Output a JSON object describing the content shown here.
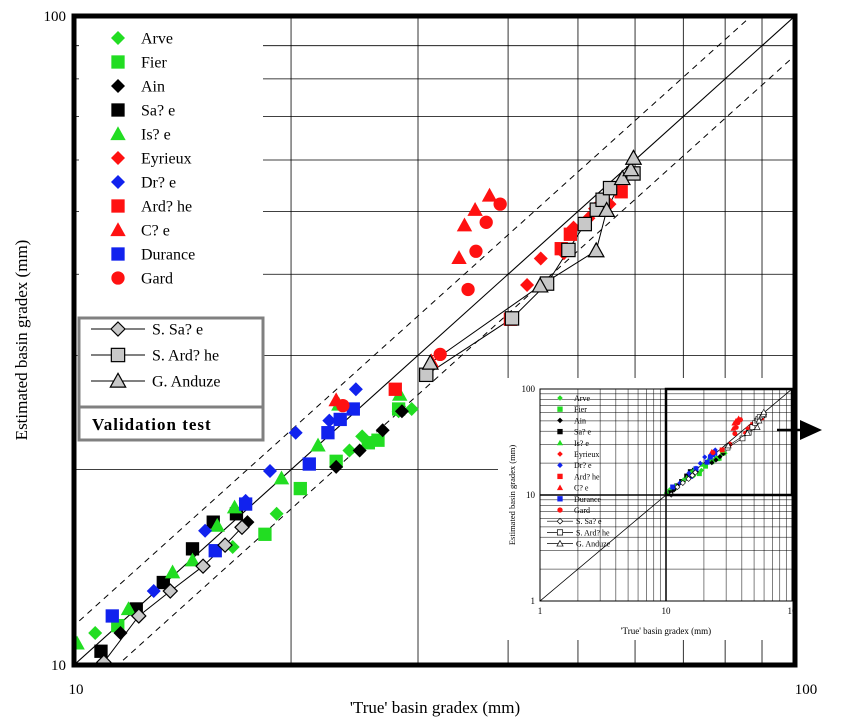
{
  "chart_data": {
    "type": "scatter",
    "xlabel": "'True' basin gradex (mm)",
    "ylabel": "Estimated basin gradex (mm)",
    "xscale": "log",
    "yscale": "log",
    "xlim": [
      10,
      100
    ],
    "ylim": [
      10,
      100
    ],
    "x_ticks": [
      "10",
      "100"
    ],
    "y_ticks": [
      "10",
      "100"
    ],
    "grid": "major and minor",
    "reference_lines": [
      "1:1 line",
      "upper dashed bound",
      "lower dashed bound"
    ],
    "legend_title": "Validation test",
    "legend_position": "top-left",
    "series": [
      {
        "name": "Arve",
        "marker": "diamond",
        "color": "#22dd22",
        "fill": true,
        "points": [
          [
            10.7,
            11.2
          ],
          [
            16.6,
            15.2
          ],
          [
            19.1,
            17.1
          ],
          [
            24.1,
            21.4
          ],
          [
            25.1,
            22.5
          ],
          [
            28.2,
            24.6
          ],
          [
            29.4,
            24.8
          ]
        ]
      },
      {
        "name": "Fier",
        "marker": "square",
        "color": "#22dd22",
        "fill": true,
        "points": [
          [
            11.5,
            11.5
          ],
          [
            18.4,
            15.9
          ],
          [
            20.6,
            18.7
          ],
          [
            23.1,
            20.6
          ],
          [
            25.6,
            22.0
          ],
          [
            26.4,
            22.2
          ],
          [
            28.2,
            24.8
          ]
        ]
      },
      {
        "name": "Ain",
        "marker": "diamond",
        "color": "#000000",
        "fill": true,
        "points": [
          [
            11.6,
            11.2
          ],
          [
            17.4,
            16.6
          ],
          [
            23.1,
            20.2
          ],
          [
            24.9,
            21.4
          ],
          [
            26.8,
            23.0
          ],
          [
            28.5,
            24.6
          ]
        ]
      },
      {
        "name": "Sa? e",
        "marker": "square",
        "color": "#000000",
        "fill": true,
        "points": [
          [
            10.9,
            10.5
          ],
          [
            12.2,
            12.2
          ],
          [
            13.3,
            13.4
          ],
          [
            14.6,
            15.1
          ],
          [
            15.6,
            16.6
          ],
          [
            16.8,
            17.1
          ]
        ]
      },
      {
        "name": "Is? e",
        "marker": "triangle",
        "color": "#22dd22",
        "fill": true,
        "points": [
          [
            10.1,
            10.8
          ],
          [
            11.9,
            12.2
          ],
          [
            13.7,
            13.9
          ],
          [
            14.6,
            14.5
          ],
          [
            15.8,
            16.4
          ],
          [
            16.7,
            17.5
          ],
          [
            19.4,
            19.4
          ],
          [
            21.8,
            21.8
          ],
          [
            23.3,
            25.2
          ],
          [
            28.3,
            26.1
          ]
        ]
      },
      {
        "name": "Eyrieux",
        "marker": "diamond",
        "color": "#ff1111",
        "fill": true,
        "points": [
          [
            42.5,
            38.5
          ],
          [
            44.4,
            42.3
          ],
          [
            47.8,
            43.1
          ],
          [
            49.3,
            47.2
          ],
          [
            51.7,
            48.8
          ],
          [
            52.8,
            50.5
          ],
          [
            55.3,
            51.3
          ]
        ]
      },
      {
        "name": "Dr? e",
        "marker": "diamond",
        "color": "#1122ee",
        "fill": true,
        "points": [
          [
            12.9,
            13.0
          ],
          [
            15.2,
            16.1
          ],
          [
            17.3,
            17.9
          ],
          [
            18.7,
            19.9
          ],
          [
            20.3,
            22.8
          ],
          [
            22.6,
            23.8
          ],
          [
            24.6,
            26.6
          ]
        ]
      },
      {
        "name": "Ard? he",
        "marker": "square",
        "color": "#ff1111",
        "fill": true,
        "points": [
          [
            27.9,
            26.6
          ],
          [
            40.3,
            34.1
          ],
          [
            47.4,
            43.8
          ],
          [
            48.8,
            46.1
          ],
          [
            57.4,
            53.6
          ]
        ]
      },
      {
        "name": "C? e",
        "marker": "triangle",
        "color": "#ff1111",
        "fill": true,
        "points": [
          [
            23.1,
            25.6
          ],
          [
            31.3,
            29.4
          ],
          [
            34.2,
            42.4
          ],
          [
            34.8,
            47.6
          ],
          [
            36.0,
            50.3
          ],
          [
            37.7,
            52.9
          ]
        ]
      },
      {
        "name": "Durance",
        "marker": "square",
        "color": "#1122ee",
        "fill": true,
        "points": [
          [
            11.3,
            11.9
          ],
          [
            15.7,
            15.0
          ],
          [
            17.3,
            17.7
          ],
          [
            21.2,
            20.4
          ],
          [
            22.5,
            22.8
          ],
          [
            23.4,
            23.9
          ],
          [
            24.4,
            24.8
          ]
        ]
      },
      {
        "name": "Gard",
        "marker": "circle",
        "color": "#ff1111",
        "fill": true,
        "points": [
          [
            23.6,
            25.1
          ],
          [
            32.2,
            30.1
          ],
          [
            35.2,
            37.9
          ],
          [
            36.1,
            43.4
          ],
          [
            37.3,
            48.1
          ],
          [
            39.0,
            51.3
          ]
        ]
      },
      {
        "name": "S. Sa? e",
        "marker": "diamond",
        "color": "#000000",
        "fill": false,
        "line": true,
        "points": [
          [
            11.0,
            10.1
          ],
          [
            12.3,
            11.9
          ],
          [
            13.6,
            13.0
          ],
          [
            15.1,
            14.2
          ],
          [
            16.2,
            15.3
          ],
          [
            17.1,
            16.3
          ]
        ]
      },
      {
        "name": "S. Ard? he",
        "marker": "square",
        "color": "#000000",
        "fill": false,
        "line": true,
        "points": [
          [
            30.8,
            28.0
          ],
          [
            40.5,
            34.2
          ],
          [
            45.3,
            38.7
          ],
          [
            48.5,
            43.6
          ],
          [
            51.1,
            47.8
          ],
          [
            53.1,
            50.3
          ],
          [
            54.1,
            52.1
          ],
          [
            55.4,
            54.3
          ],
          [
            59.7,
            57.2
          ]
        ]
      },
      {
        "name": "G. Anduze",
        "marker": "triangle",
        "color": "#000000",
        "fill": false,
        "line": true,
        "points": [
          [
            31.2,
            29.2
          ],
          [
            44.3,
            38.4
          ],
          [
            53.0,
            43.5
          ],
          [
            54.8,
            50.2
          ],
          [
            57.6,
            56.2
          ],
          [
            59.2,
            58.0
          ],
          [
            59.7,
            60.4
          ]
        ]
      }
    ],
    "inset": {
      "xlim": [
        1,
        100
      ],
      "ylim": [
        1,
        100
      ],
      "x_ticks": [
        "1",
        "10",
        "10"
      ],
      "y_ticks": [
        "1",
        "10",
        "100"
      ],
      "xlabel": "'True' basin gradex (mm)",
      "ylabel": "Estimated basin gradex (mm)"
    }
  }
}
